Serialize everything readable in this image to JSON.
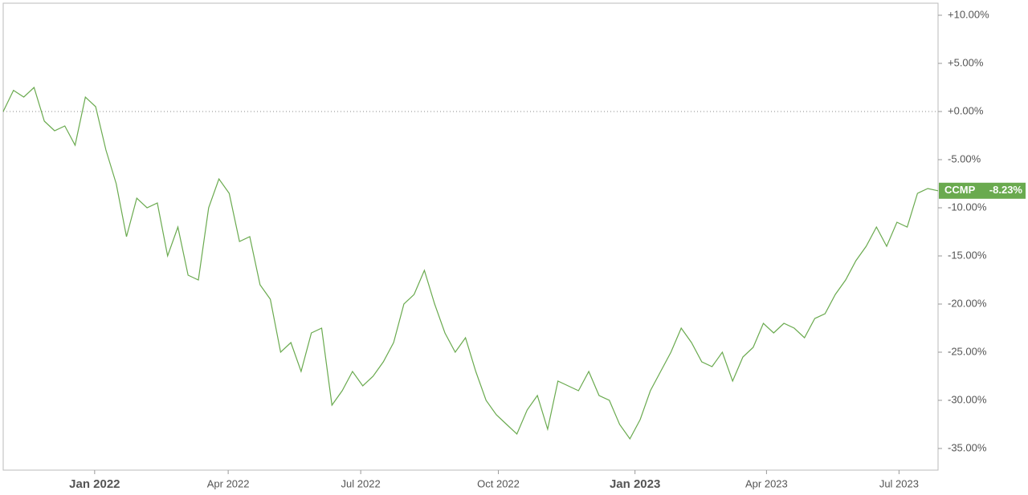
{
  "chart_data": {
    "type": "line",
    "categories": [
      null,
      null,
      null,
      null,
      null,
      null,
      null,
      null,
      null,
      null,
      null,
      null,
      null,
      null,
      null,
      null,
      null,
      null,
      null,
      null,
      null,
      null,
      null,
      null,
      null,
      null,
      null,
      null,
      null,
      null,
      null,
      null,
      null,
      null,
      null,
      null,
      null,
      null,
      null,
      null,
      null,
      null,
      null,
      null,
      null,
      null,
      null,
      null,
      null,
      null,
      null,
      null,
      null,
      null,
      null,
      null,
      null,
      null,
      null,
      null,
      null,
      null,
      null,
      null,
      null,
      null,
      null,
      null,
      null,
      null,
      null,
      null,
      null,
      null,
      null,
      null,
      null,
      null,
      null,
      null,
      null,
      null,
      null,
      null,
      null,
      null,
      null,
      null,
      null,
      null,
      null,
      null
    ],
    "series": [
      {
        "name": "CCMP",
        "color": "#6aaa4f",
        "values": [
          0.0,
          2.2,
          1.5,
          2.5,
          -1.0,
          -2.0,
          -1.5,
          -3.5,
          1.5,
          0.5,
          -4.0,
          -7.5,
          -13,
          -9,
          -10,
          -9.5,
          -15,
          -12,
          -17,
          -17.5,
          -10,
          -7,
          -8.5,
          -13.5,
          -13,
          -18,
          -19.5,
          -25,
          -24,
          -27,
          -23,
          -22.5,
          -30.5,
          -29,
          -27,
          -28.5,
          -27.5,
          -26,
          -24,
          -20,
          -19,
          -16.5,
          -20,
          -23,
          -25,
          -23.5,
          -27,
          -30,
          -31.5,
          -32.5,
          -33.5,
          -31,
          -29.5,
          -33,
          -28,
          -28.5,
          -29,
          -27,
          -29.5,
          -30,
          -32.5,
          -34,
          -32,
          -29,
          -27,
          -25,
          -22.5,
          -24,
          -26,
          -26.5,
          -25,
          -28,
          -25.5,
          -24.5,
          -22,
          -23,
          -22,
          -22.5,
          -23.5,
          -21.5,
          -21,
          -19,
          -17.5,
          -15.5,
          -14,
          -12,
          -14,
          -11.5,
          -12,
          -8.5,
          -8,
          -8.23
        ],
        "last_value": {
          "value": -8.23,
          "label": "-8.23%"
        }
      }
    ],
    "ylim": [
      -37.25,
      11.25
    ],
    "yticks": [
      {
        "value": 10,
        "label": "+10.00%"
      },
      {
        "value": 5,
        "label": "+5.00%"
      },
      {
        "value": 0,
        "label": "+0.00%"
      },
      {
        "value": -5,
        "label": "-5.00%"
      },
      {
        "value": -10,
        "label": "-10.00%"
      },
      {
        "value": -15,
        "label": "-15.00%"
      },
      {
        "value": -20,
        "label": "-20.00%"
      },
      {
        "value": -25,
        "label": "-25.00%"
      },
      {
        "value": -30,
        "label": "-30.00%"
      },
      {
        "value": -35,
        "label": "-35.00%"
      }
    ],
    "xticks": [
      {
        "value": 8.9,
        "label": "Jan 2022",
        "bold": true
      },
      {
        "value": 21.9,
        "label": "Apr 2022"
      },
      {
        "value": 34.8,
        "label": "Jul 2022"
      },
      {
        "value": 48.2,
        "label": "Oct 2022"
      },
      {
        "value": 61.5,
        "label": "Jan 2023",
        "bold": true
      },
      {
        "value": 74.3,
        "label": "Apr 2023"
      },
      {
        "value": 87.2,
        "label": "Jul 2023"
      }
    ],
    "reference_line": 0,
    "y_axis_side": "right"
  }
}
